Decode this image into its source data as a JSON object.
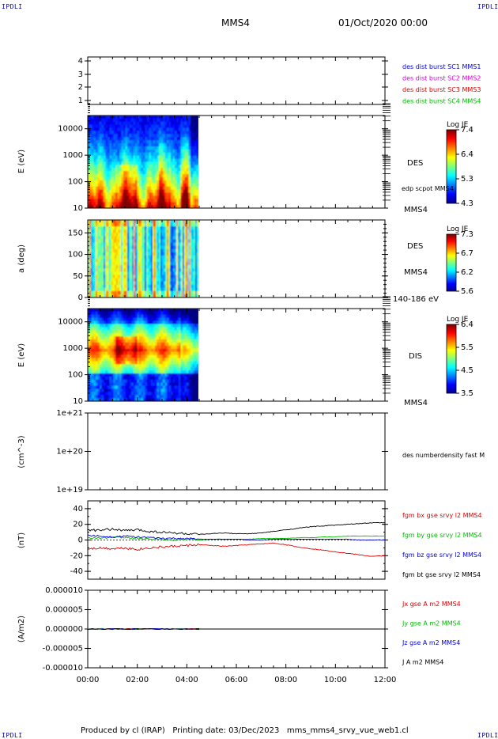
{
  "header": {
    "corner_tl": "IPDLI",
    "corner_tr": "IPDLI",
    "corner_bl": "IPDLI",
    "corner_br": "IPDLI",
    "title": "MMS4",
    "date": "01/Oct/2020 00:00"
  },
  "footer": {
    "text": "Produced by cl (IRAP)   Printing date: 03/Dec/2023   mms_mms4_srvy_vue_web1.cl"
  },
  "colors": {
    "blue": "#0000dd",
    "magenta": "#dd00dd",
    "red": "#dd0000",
    "green": "#00bb00",
    "black": "#000000"
  },
  "chart_data": [
    {
      "type": "line",
      "id": "panel1",
      "ylabel": "",
      "yticks": [
        "1",
        "2",
        "3",
        "4"
      ],
      "legend": [
        {
          "text": "des dist burst SC1 MMS1",
          "color": "#0000dd"
        },
        {
          "text": "des dist burst SC2 MMS2",
          "color": "#dd00dd"
        },
        {
          "text": "des dist burst SC3 MMS3",
          "color": "#dd0000"
        },
        {
          "text": "des dist burst SC4 MMS4",
          "color": "#00bb00"
        }
      ]
    },
    {
      "type": "heatmap",
      "id": "panel2",
      "ylabel": "E (eV)",
      "yticks": [
        "10000",
        "1000",
        "100",
        "10"
      ],
      "yscale": "log",
      "data_x_range": [
        "00:00",
        "04:30"
      ],
      "labels": [
        "DES",
        "edp scpot MMS4",
        "MMS4"
      ],
      "colorbar": {
        "title": "Log JE",
        "ticks": [
          "7.4",
          "6.4",
          "5.3",
          "4.3"
        ]
      }
    },
    {
      "type": "heatmap",
      "id": "panel3",
      "ylabel": "a (deg)",
      "yticks": [
        "150",
        "100",
        "50",
        "0"
      ],
      "data_x_range": [
        "00:00",
        "04:30"
      ],
      "labels": [
        "DES",
        "MMS4",
        "140-186 eV"
      ],
      "colorbar": {
        "title": "Log JE",
        "ticks": [
          "7.3",
          "6.7",
          "6.2",
          "5.6"
        ]
      }
    },
    {
      "type": "heatmap",
      "id": "panel4",
      "ylabel": "E (eV)",
      "yticks": [
        "10000",
        "1000",
        "100",
        "10"
      ],
      "yscale": "log",
      "data_x_range": [
        "00:00",
        "04:30"
      ],
      "labels": [
        "DIS",
        "MMS4"
      ],
      "colorbar": {
        "title": "Log JE",
        "ticks": [
          "6.4",
          "5.5",
          "4.5",
          "3.5"
        ]
      }
    },
    {
      "type": "line",
      "id": "panel5",
      "ylabel": "(cm^-3)",
      "yticks": [
        "1e+21",
        "1e+20",
        "1e+19"
      ],
      "legend": [
        {
          "text": "des numberdensity fast M",
          "color": "#000000"
        }
      ]
    },
    {
      "type": "line",
      "id": "panel6",
      "ylabel": "(nT)",
      "yticks": [
        "40",
        "20",
        "0",
        "-20",
        "-40"
      ],
      "ylim": [
        -50,
        50
      ],
      "x_hours": [
        0,
        0.5,
        1,
        1.5,
        2,
        2.5,
        3,
        3.5,
        4,
        4.5,
        5,
        5.5,
        6,
        6.5,
        7,
        7.5,
        8,
        8.5,
        9,
        9.5,
        10,
        10.5,
        11,
        11.5,
        12
      ],
      "series": [
        {
          "name": "fgm bx gse srvy l2 MMS4",
          "color": "#dd0000",
          "values": [
            -11,
            -10,
            -11,
            -10,
            -12,
            -10,
            -9,
            -8,
            -7,
            -6,
            -7,
            -8,
            -7,
            -6,
            -5,
            -4,
            -6,
            -9,
            -11,
            -13,
            -15,
            -17,
            -19,
            -21,
            -20
          ]
        },
        {
          "name": "fgm by gse srvy l2 MMS4",
          "color": "#00bb00",
          "values": [
            3,
            2,
            4,
            3,
            2,
            1,
            1,
            0,
            1,
            0,
            1,
            1,
            1,
            1,
            2,
            2,
            2,
            3,
            3,
            4,
            4,
            5,
            5,
            5,
            5
          ]
        },
        {
          "name": "fgm bz gse srvy l2 MMS4",
          "color": "#0000dd",
          "values": [
            6,
            5,
            4,
            5,
            4,
            3,
            2,
            2,
            2,
            1,
            1,
            1,
            1,
            0,
            0,
            1,
            1,
            1,
            1,
            1,
            1,
            1,
            0,
            0,
            0
          ]
        },
        {
          "name": "fgm bt gse srvy l2 MMS4",
          "color": "#000000",
          "values": [
            13,
            12,
            14,
            12,
            13,
            11,
            10,
            9,
            8,
            7,
            8,
            9,
            8,
            8,
            9,
            11,
            13,
            15,
            17,
            18,
            19,
            20,
            21,
            22,
            22
          ]
        }
      ]
    },
    {
      "type": "line",
      "id": "panel7",
      "ylabel": "(A/m2)",
      "yticks": [
        "0.000010",
        "0.000005",
        "0.000000",
        "-0.000005",
        "-0.000010"
      ],
      "ylim": [
        -1e-05,
        1e-05
      ],
      "xticks": [
        "00:00",
        "02:00",
        "04:00",
        "06:00",
        "08:00",
        "10:00",
        "12:00"
      ],
      "x_hours": [
        0,
        0.5,
        1,
        1.5,
        2,
        2.5,
        3,
        3.5,
        4,
        4.5
      ],
      "series": [
        {
          "name": "Jx gse A m2 MMS4",
          "color": "#dd0000",
          "values": [
            0,
            0,
            0,
            0,
            0,
            0,
            0,
            0,
            0,
            0
          ]
        },
        {
          "name": "Jy gse A m2 MMS4",
          "color": "#00bb00",
          "values": [
            0,
            0,
            0,
            0,
            0,
            0,
            0,
            0,
            0,
            0
          ]
        },
        {
          "name": "Jz gse A m2 MMS4",
          "color": "#0000dd",
          "values": [
            0,
            0,
            0,
            0,
            0,
            0,
            0,
            0,
            0,
            0
          ]
        },
        {
          "name": "J A m2 MMS4",
          "color": "#000000",
          "values": [
            0,
            0,
            0,
            0,
            0,
            0,
            0,
            0,
            0,
            0
          ]
        }
      ]
    }
  ]
}
